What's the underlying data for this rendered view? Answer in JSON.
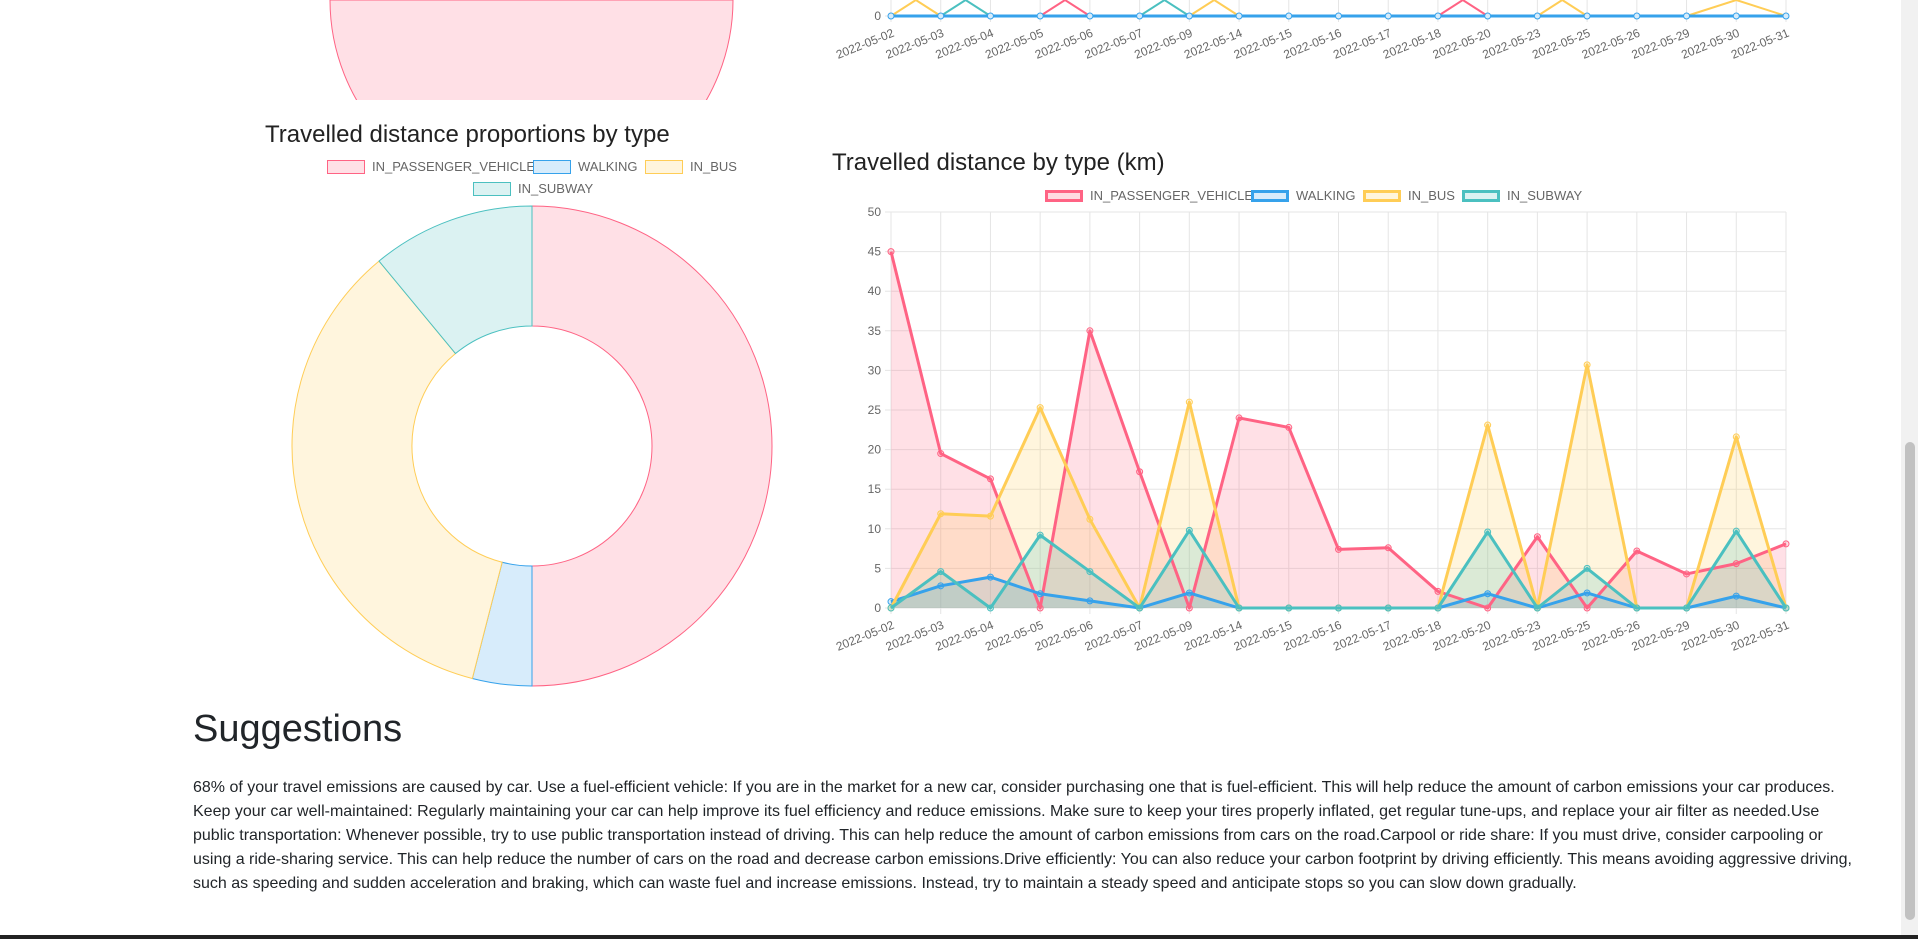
{
  "colors": {
    "vehicle": "#ff6384",
    "walking": "#36a2eb",
    "bus": "#ffcd56",
    "subway": "#4bc0c0",
    "grid": "#e5e5e5",
    "axis_text": "#666666"
  },
  "dates": [
    "2022-05-02",
    "2022-05-03",
    "2022-05-04",
    "2022-05-05",
    "2022-05-06",
    "2022-05-07",
    "2022-05-09",
    "2022-05-14",
    "2022-05-15",
    "2022-05-16",
    "2022-05-17",
    "2022-05-18",
    "2022-05-20",
    "2022-05-23",
    "2022-05-25",
    "2022-05-26",
    "2022-05-29",
    "2022-05-30",
    "2022-05-31"
  ],
  "top_line_chart": {
    "y_tick_visible": "0"
  },
  "doughnut": {
    "title": "Travelled distance proportions by type",
    "legend": [
      "IN_PASSENGER_VEHICLE",
      "WALKING",
      "IN_BUS",
      "IN_SUBWAY"
    ],
    "chart_data": {
      "type": "pie",
      "title": "Travelled distance proportions by type",
      "labels": [
        "IN_PASSENGER_VEHICLE",
        "WALKING",
        "IN_BUS",
        "IN_SUBWAY"
      ],
      "values": [
        50.0,
        4.0,
        35.0,
        11.0
      ]
    }
  },
  "line": {
    "title": "Travelled distance by type (km)",
    "legend": [
      "IN_PASSENGER_VEHICLE",
      "WALKING",
      "IN_BUS",
      "IN_SUBWAY"
    ],
    "y_ticks": [
      "0",
      "5",
      "10",
      "15",
      "20",
      "25",
      "30",
      "35",
      "40",
      "45",
      "50"
    ],
    "chart_data": {
      "type": "area",
      "title": "Travelled distance by type (km)",
      "xlabel": "",
      "ylabel": "",
      "ylim": [
        0,
        50
      ],
      "categories": [
        "2022-05-02",
        "2022-05-03",
        "2022-05-04",
        "2022-05-05",
        "2022-05-06",
        "2022-05-07",
        "2022-05-09",
        "2022-05-14",
        "2022-05-15",
        "2022-05-16",
        "2022-05-17",
        "2022-05-18",
        "2022-05-20",
        "2022-05-23",
        "2022-05-25",
        "2022-05-26",
        "2022-05-29",
        "2022-05-30",
        "2022-05-31"
      ],
      "series": [
        {
          "name": "IN_PASSENGER_VEHICLE",
          "values": [
            45,
            19.5,
            16.3,
            0,
            35,
            17.2,
            0,
            24,
            22.8,
            7.4,
            7.6,
            2.1,
            0,
            9,
            0,
            7.2,
            4.3,
            5.6,
            8.1
          ]
        },
        {
          "name": "WALKING",
          "values": [
            0.8,
            2.8,
            3.9,
            1.8,
            0.9,
            0,
            1.9,
            0,
            0,
            0,
            0,
            0,
            1.8,
            0,
            1.9,
            0,
            0,
            1.5,
            0
          ]
        },
        {
          "name": "IN_BUS",
          "values": [
            0,
            11.9,
            11.6,
            25.3,
            11.2,
            0,
            26,
            0,
            0,
            0,
            0,
            0,
            23.1,
            0,
            30.7,
            0,
            0,
            21.6,
            0
          ]
        },
        {
          "name": "IN_SUBWAY",
          "values": [
            0,
            4.6,
            0,
            9.2,
            4.6,
            0,
            9.8,
            0,
            0,
            0,
            0,
            0,
            9.6,
            0,
            5,
            0,
            0,
            9.7,
            0
          ]
        }
      ]
    }
  },
  "suggestions": {
    "title": "Suggestions",
    "text": "68% of your travel emissions are caused by car. Use a fuel-efficient vehicle: If you are in the market for a new car, consider purchasing one that is fuel-efficient. This will help reduce the amount of carbon emissions your car produces. Keep your car well-maintained: Regularly maintaining your car can help improve its fuel efficiency and reduce emissions. Make sure to keep your tires properly inflated, get regular tune-ups, and replace your air filter as needed.Use public transportation: Whenever possible, try to use public transportation instead of driving. This can help reduce the amount of carbon emissions from cars on the road.Carpool or ride share: If you must drive, consider carpooling or using a ride-sharing service. This can help reduce the number of cars on the road and decrease carbon emissions.Drive efficiently: You can also reduce your carbon footprint by driving efficiently. This means avoiding aggressive driving, such as speeding and sudden acceleration and braking, which can waste fuel and increase emissions. Instead, try to maintain a steady speed and anticipate stops so you can slow down gradually."
  }
}
